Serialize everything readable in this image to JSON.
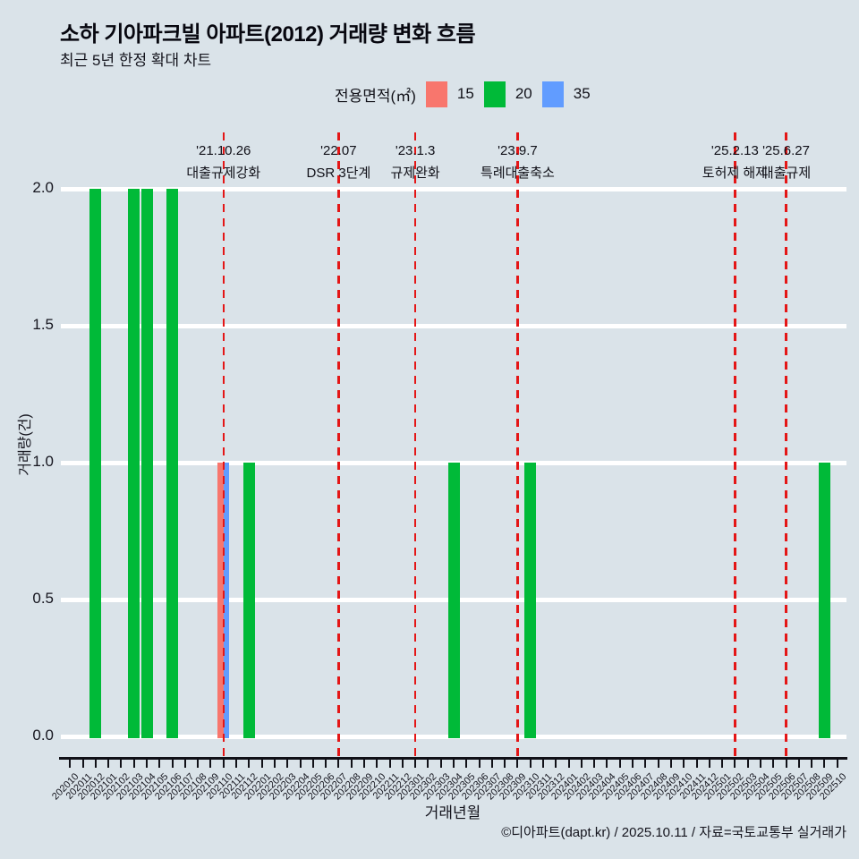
{
  "title": "소하 기아파크빌 아파트(2012) 거래량 변화 흐름",
  "subtitle": "최근 5년 한정 확대 차트",
  "legend": {
    "label": "전용면적(㎡)",
    "items": [
      {
        "label": "15",
        "color": "#F8766D"
      },
      {
        "label": "20",
        "color": "#00BA38"
      },
      {
        "label": "35",
        "color": "#619CFF"
      }
    ]
  },
  "footer": "©디아파트(dapt.kr) / 2025.10.11 / 자료=국토교통부 실거래가",
  "chart_data": {
    "type": "bar",
    "title": "소하 기아파크빌 아파트(2012) 거래량 변화 흐름",
    "subtitle": "최근 5년 한정 확대 차트",
    "xlabel": "거래년월",
    "ylabel": "거래량(건)",
    "ylim": [
      0,
      2
    ],
    "grid": "horizontal-white",
    "legend_position": "top-center",
    "yticks": [
      {
        "value": 0.0,
        "label": "0.0"
      },
      {
        "value": 0.5,
        "label": "0.5"
      },
      {
        "value": 1.0,
        "label": "1.0"
      },
      {
        "value": 1.5,
        "label": "1.5"
      },
      {
        "value": 2.0,
        "label": "2.0"
      }
    ],
    "categories": [
      "202010",
      "202011",
      "202012",
      "202101",
      "202102",
      "202103",
      "202104",
      "202105",
      "202106",
      "202107",
      "202108",
      "202109",
      "202110",
      "202111",
      "202112",
      "202201",
      "202202",
      "202203",
      "202204",
      "202205",
      "202206",
      "202207",
      "202208",
      "202209",
      "202210",
      "202211",
      "202212",
      "202301",
      "202302",
      "202303",
      "202304",
      "202305",
      "202306",
      "202307",
      "202308",
      "202309",
      "202310",
      "202311",
      "202312",
      "202401",
      "202402",
      "202403",
      "202404",
      "202405",
      "202406",
      "202407",
      "202408",
      "202409",
      "202410",
      "202411",
      "202412",
      "202501",
      "202502",
      "202503",
      "202504",
      "202505",
      "202506",
      "202507",
      "202508",
      "202509",
      "202510"
    ],
    "series": [
      {
        "name": "15",
        "color": "#F8766D",
        "points": [
          {
            "x": "202110",
            "y": 1
          }
        ]
      },
      {
        "name": "20",
        "color": "#00BA38",
        "points": [
          {
            "x": "202012",
            "y": 2
          },
          {
            "x": "202103",
            "y": 2
          },
          {
            "x": "202104",
            "y": 2
          },
          {
            "x": "202106",
            "y": 2
          },
          {
            "x": "202112",
            "y": 1
          },
          {
            "x": "202304",
            "y": 1
          },
          {
            "x": "202310",
            "y": 1
          },
          {
            "x": "202509",
            "y": 1
          }
        ]
      },
      {
        "name": "35",
        "color": "#619CFF",
        "points": [
          {
            "x": "202110",
            "y": 1
          }
        ]
      }
    ],
    "events": [
      {
        "x": "202110",
        "date": "'21.10.26",
        "label": "대출규제강화",
        "line_color": "#e41616"
      },
      {
        "x": "202207",
        "date": "'22.07",
        "label": "DSR 3단계",
        "line_color": "#e41616"
      },
      {
        "x": "202301",
        "date": "'23.1.3",
        "label": "규제완화",
        "line_color": "#e41616"
      },
      {
        "x": "202309",
        "date": "'23.9.7",
        "label": "특례대출축소",
        "line_color": "#e41616"
      },
      {
        "x": "202502",
        "date": "'25.2.13",
        "label": "토허제 해제",
        "line_color": "#e41616"
      },
      {
        "x": "202506",
        "date": "'25.6.27",
        "label": "대출규제",
        "line_color": "#e41616"
      }
    ]
  }
}
